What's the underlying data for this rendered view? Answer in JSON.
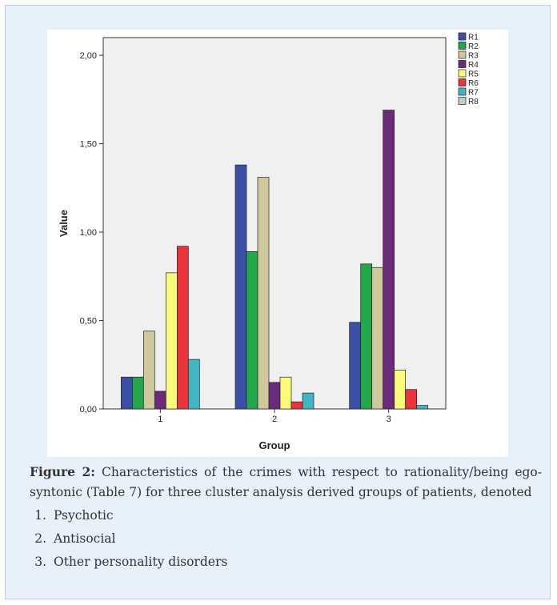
{
  "chart_data": {
    "type": "bar",
    "categories": [
      "1",
      "2",
      "3"
    ],
    "xlabel": "Group",
    "ylabel": "Value",
    "ylim": [
      0,
      2.1
    ],
    "yticks": [
      "0,00",
      "0,50",
      "1,00",
      "1,50",
      "2,00"
    ],
    "ytick_values": [
      0,
      0.5,
      1,
      1.5,
      2
    ],
    "grid": false,
    "legend_position": "top-right",
    "series": [
      {
        "name": "R1",
        "color": "#3a4fa6",
        "values": [
          0.18,
          1.38,
          0.49
        ]
      },
      {
        "name": "R2",
        "color": "#22a84a",
        "values": [
          0.18,
          0.89,
          0.82
        ]
      },
      {
        "name": "R3",
        "color": "#cfc89b",
        "values": [
          0.44,
          1.31,
          0.8
        ]
      },
      {
        "name": "R4",
        "color": "#6b2a7a",
        "values": [
          0.1,
          0.15,
          1.69
        ]
      },
      {
        "name": "R5",
        "color": "#fbfb7a",
        "values": [
          0.77,
          0.18,
          0.22
        ]
      },
      {
        "name": "R6",
        "color": "#e8343a",
        "values": [
          0.92,
          0.04,
          0.11
        ]
      },
      {
        "name": "R7",
        "color": "#3fb7c3",
        "values": [
          0.28,
          0.09,
          0.02
        ]
      },
      {
        "name": "R8",
        "color": "#c8c8c8",
        "values": [
          0,
          0,
          0
        ]
      }
    ]
  },
  "caption": {
    "label": "Figure 2:",
    "text": "Characteristics of the crimes with respect to rationality/being ego-syntonic (Table 7) for three cluster analysis derived groups of patients, denoted",
    "items": [
      "Psychotic",
      "Antisocial",
      "Other personality disorders"
    ]
  }
}
